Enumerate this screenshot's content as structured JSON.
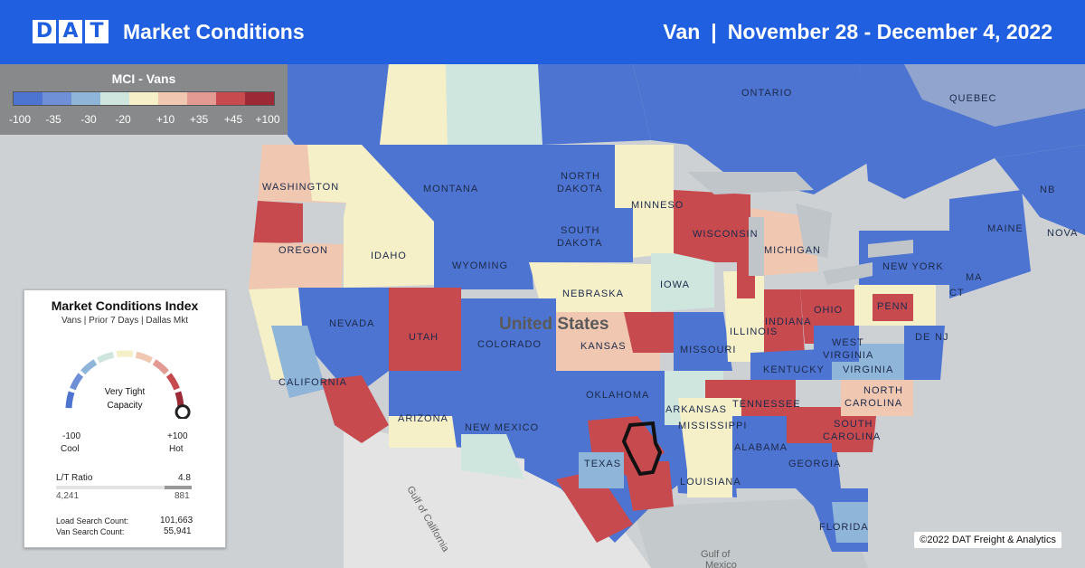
{
  "header": {
    "logo_letters": [
      "D",
      "A",
      "T"
    ],
    "title": "Market Conditions",
    "equipment": "Van",
    "separator": "|",
    "date_range": "November 28 - December 4, 2022"
  },
  "legend": {
    "title": "MCI - Vans",
    "ticks": [
      "-100",
      "-35",
      "-30",
      "-20",
      "+10",
      "+35",
      "+45",
      "+100"
    ],
    "colors": [
      "#4d74d1",
      "#6f8fd6",
      "#8fb5d9",
      "#cfe6df",
      "#f5f0c8",
      "#f0c7b0",
      "#e39a92",
      "#c74a4f",
      "#9c2a36"
    ]
  },
  "card": {
    "title": "Market Conditions Index",
    "subtitle": "Vans | Prior 7 Days | Dallas Mkt",
    "status_line1": "Very Tight",
    "status_line2": "Capacity",
    "min_value": "-100",
    "min_label": "Cool",
    "max_value": "+100",
    "max_label": "Hot",
    "gauge_level": 0.92,
    "lt_label": "L/T Ratio",
    "lt_value": "4.8",
    "loads": "4,241",
    "trucks": "881",
    "load_search_label": "Load Search Count:",
    "load_search_value": "101,663",
    "van_search_label": "Van Search Count:",
    "van_search_value": "55,941"
  },
  "map": {
    "labels": {
      "ontario": "ONTARIO",
      "quebec": "QUEBEC",
      "washington": "WASHINGTON",
      "oregon": "OREGON",
      "idaho": "IDAHO",
      "montana": "MONTANA",
      "north_dakota_1": "NORTH",
      "north_dakota_2": "DAKOTA",
      "south_dakota_1": "SOUTH",
      "south_dakota_2": "DAKOTA",
      "minnesota": "MINNESO",
      "wyoming": "WYOMING",
      "nebraska": "NEBRASKA",
      "iowa": "IOWA",
      "wisconsin": "WISCONSIN",
      "michigan": "MICHIGAN",
      "nevada": "NEVADA",
      "utah": "UTAH",
      "colorado": "COLORADO",
      "kansas": "KANSAS",
      "missouri": "MISSOURI",
      "illinois": "ILLINOIS",
      "indiana": "INDIANA",
      "ohio": "OHIO",
      "penn": "PENN",
      "new_york": "NEW YORK",
      "maine": "MAINE",
      "nb": "NB",
      "nova": "NOVA",
      "ma": "MA",
      "ct": "CT",
      "nj": "NJ",
      "de": "DE",
      "west_virginia_1": "WEST",
      "west_virginia_2": "VIRGINIA",
      "virginia": "VIRGINIA",
      "kentucky": "KENTUCKY",
      "tennessee": "TENNESSEE",
      "north_carolina_1": "NORTH",
      "north_carolina_2": "CAROLINA",
      "south_carolina_1": "SOUTH",
      "south_carolina_2": "CAROLINA",
      "georgia": "GEORGIA",
      "alabama": "ALABAMA",
      "mississippi": "MISSISSIPPI",
      "louisiana": "LOUISIANA",
      "arkansas": "ARKANSAS",
      "oklahoma": "OKLAHOMA",
      "texas": "TEXAS",
      "new_mexico": "NEW MEXICO",
      "arizona": "ARIZONA",
      "california": "CALIFORNIA",
      "florida": "FLORIDA",
      "united_states": "United States",
      "gulf_of_mexico_1": "Gulf of",
      "gulf_of_mexico_2": "Mexico",
      "gulf_of_california": "Gulf of California"
    }
  },
  "copyright": "©2022 DAT Freight & Analytics"
}
